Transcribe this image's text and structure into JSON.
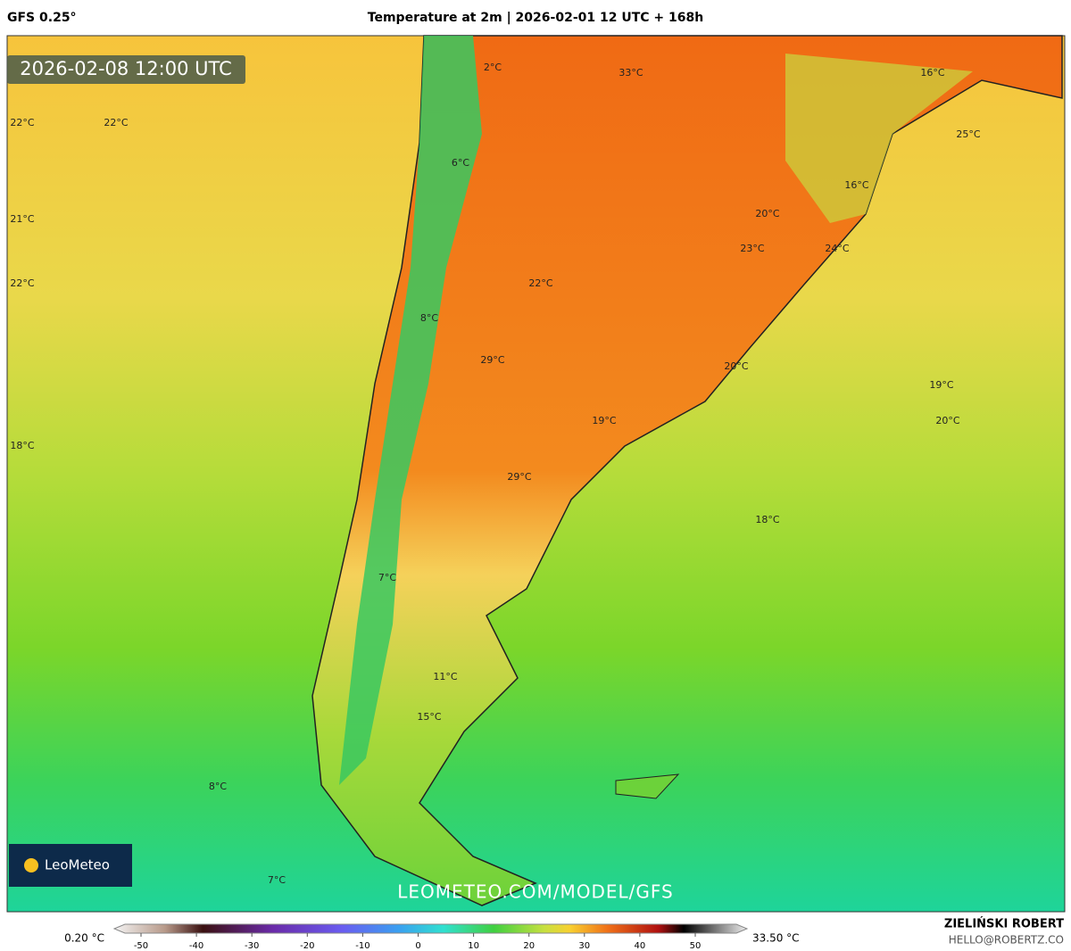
{
  "header": {
    "model": "GFS 0.25°",
    "title": "Temperature at 2m | 2026-02-01 12 UTC + 168h"
  },
  "map": {
    "valid_time": "2026-02-08 12:00 UTC",
    "watermark": "LEOMETEO.COM/MODEL/GFS",
    "logo": "LeoMeteo",
    "labels": [
      "2°C",
      "33°C",
      "16°C",
      "22°C",
      "22°C",
      "25°C",
      "6°C",
      "16°C",
      "20°C",
      "21°C",
      "23°C",
      "24°C",
      "22°C",
      "22°C",
      "8°C",
      "29°C",
      "20°C",
      "19°C",
      "19°C",
      "20°C",
      "18°C",
      "29°C",
      "18°C",
      "7°C",
      "11°C",
      "15°C",
      "8°C",
      "7°C"
    ]
  },
  "colorbar": {
    "min_label": "0.20 °C",
    "max_label": "33.50 °C",
    "ticks": [
      -50,
      -40,
      -30,
      -20,
      -10,
      0,
      10,
      20,
      30,
      40,
      50
    ]
  },
  "footer": {
    "author": "ZIELIŃSKI ROBERT",
    "contact": "HELLO@ROBERTZ.CO"
  }
}
